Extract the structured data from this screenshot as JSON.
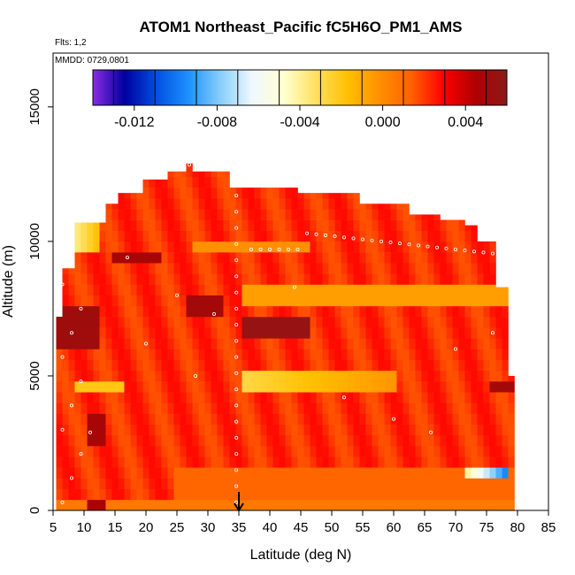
{
  "chart_data": {
    "type": "heatmap",
    "title": "ATOM1 Northeast_Pacific fC5H6O_PM1_AMS",
    "subtitle_lines": [
      "Flts: 1,2",
      "MMDD: 0729,0801"
    ],
    "xlabel": "Latitude (deg N)",
    "ylabel": "Altitude (m)",
    "xlim": [
      5,
      85
    ],
    "ylim": [
      0,
      17000
    ],
    "x_ticks": [
      "5",
      "10",
      "15",
      "20",
      "25",
      "30",
      "35",
      "40",
      "45",
      "50",
      "55",
      "60",
      "65",
      "70",
      "75",
      "80",
      "85"
    ],
    "x_tick_values": [
      5,
      10,
      15,
      20,
      25,
      30,
      35,
      40,
      45,
      50,
      55,
      60,
      65,
      70,
      75,
      80,
      85
    ],
    "y_ticks": [
      "0",
      "5000",
      "10000",
      "15000"
    ],
    "y_tick_values": [
      0,
      5000,
      10000,
      15000
    ],
    "colorbar": {
      "range": [
        -0.014,
        0.006
      ],
      "tick_labels": [
        "-0.012",
        "-0.008",
        "-0.004",
        "0.000",
        "0.004"
      ],
      "tick_values": [
        -0.012,
        -0.008,
        -0.004,
        0.0,
        0.004
      ],
      "colors": [
        "#8a2be2",
        "#0000a0",
        "#0050e0",
        "#1e90ff",
        "#87cefa",
        "#f0f8ff",
        "#ffffd0",
        "#ffe060",
        "#ffc000",
        "#ff9000",
        "#ff6000",
        "#ff0000",
        "#b00000",
        "#8b1a1a"
      ]
    },
    "marker_latitude": 35,
    "marker_arrow": "down",
    "grid": false,
    "legend": "colorbar top"
  }
}
